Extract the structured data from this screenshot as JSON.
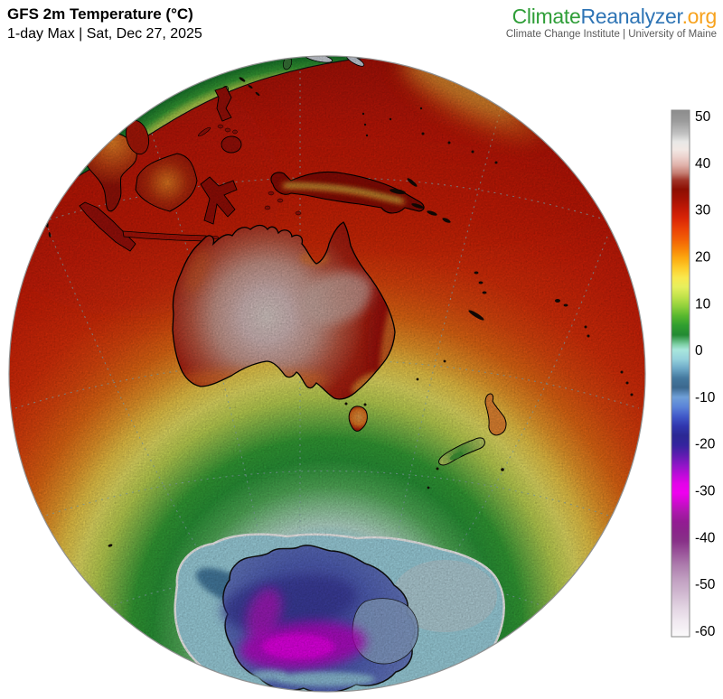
{
  "header": {
    "title": "GFS 2m Temperature (°C)",
    "subtitle": "1-day Max | Sat, Dec 27, 2025"
  },
  "logo": {
    "climate": "Climate",
    "reanalyzer": "Reanalyzer",
    "org": ".org",
    "tagline": "Climate Change Institute | University of Maine",
    "colors": {
      "climate": "#2f9e38",
      "reanalyzer": "#2e74b5",
      "org": "#f7a21d",
      "tagline": "#5a5a5a"
    }
  },
  "colorbar": {
    "unit": "°C",
    "max": 50,
    "min": -60,
    "tick_step": 10,
    "ticks": [
      50,
      40,
      30,
      20,
      10,
      0,
      -10,
      -20,
      -30,
      -40,
      -50,
      -60
    ],
    "stops": [
      [
        0,
        "#8c8c8c"
      ],
      [
        0.02,
        "#9a9a9a"
      ],
      [
        0.045,
        "#c2c2c2"
      ],
      [
        0.06,
        "#e8e8e6"
      ],
      [
        0.075,
        "#f2e8e4"
      ],
      [
        0.09,
        "#ecd0cb"
      ],
      [
        0.105,
        "#dfb0a8"
      ],
      [
        0.12,
        "#c47c70"
      ],
      [
        0.133,
        "#a03428"
      ],
      [
        0.15,
        "#8c0e02"
      ],
      [
        0.168,
        "#a31103"
      ],
      [
        0.186,
        "#c01805"
      ],
      [
        0.205,
        "#d92506"
      ],
      [
        0.225,
        "#ea4106"
      ],
      [
        0.245,
        "#f25f06"
      ],
      [
        0.264,
        "#f88407"
      ],
      [
        0.282,
        "#fcab11"
      ],
      [
        0.3,
        "#fdcd2c"
      ],
      [
        0.318,
        "#f9e84e"
      ],
      [
        0.336,
        "#e6ef5d"
      ],
      [
        0.355,
        "#bfe24a"
      ],
      [
        0.373,
        "#8fd03b"
      ],
      [
        0.391,
        "#57b72e"
      ],
      [
        0.409,
        "#2f9e2f"
      ],
      [
        0.427,
        "#238a33"
      ],
      [
        0.445,
        "#7ed0a6"
      ],
      [
        0.455,
        "#a9e6dc"
      ],
      [
        0.473,
        "#95d2dc"
      ],
      [
        0.491,
        "#6ca8c6"
      ],
      [
        0.509,
        "#44789e"
      ],
      [
        0.527,
        "#3c688e"
      ],
      [
        0.545,
        "#6f9fd8"
      ],
      [
        0.564,
        "#5a82d8"
      ],
      [
        0.582,
        "#4058c8"
      ],
      [
        0.6,
        "#3036ae"
      ],
      [
        0.618,
        "#2b2894"
      ],
      [
        0.636,
        "#34249e"
      ],
      [
        0.655,
        "#5e1cb0"
      ],
      [
        0.673,
        "#8c16c6"
      ],
      [
        0.691,
        "#ba0cd8"
      ],
      [
        0.709,
        "#e203e8"
      ],
      [
        0.727,
        "#ef00ef"
      ],
      [
        0.745,
        "#cf0bcf"
      ],
      [
        0.764,
        "#ab18ab"
      ],
      [
        0.782,
        "#931b93"
      ],
      [
        0.8,
        "#8a258a"
      ],
      [
        0.818,
        "#883088"
      ],
      [
        0.84,
        "#9a549a"
      ],
      [
        0.864,
        "#ad7cad"
      ],
      [
        0.89,
        "#c09ec0"
      ],
      [
        0.915,
        "#cfb6cf"
      ],
      [
        0.945,
        "#e2d4e2"
      ],
      [
        0.97,
        "#f0e8f0"
      ],
      [
        1,
        "#fbfafb"
      ]
    ]
  },
  "map": {
    "ocean_stops": [
      [
        0,
        "#7888cc"
      ],
      [
        0.105,
        "#99d6e6"
      ],
      [
        0.155,
        "#a6dde9"
      ],
      [
        0.185,
        "#bfe6d6"
      ],
      [
        0.215,
        "#93d2a0"
      ],
      [
        0.25,
        "#55b45c"
      ],
      [
        0.295,
        "#2b9b39"
      ],
      [
        0.33,
        "#35a437"
      ],
      [
        0.365,
        "#7fc04a"
      ],
      [
        0.4,
        "#c4dc55"
      ],
      [
        0.435,
        "#eee867"
      ],
      [
        0.47,
        "#f6cf4a"
      ],
      [
        0.505,
        "#f49f2c"
      ],
      [
        0.55,
        "#ee6c14"
      ],
      [
        0.6,
        "#e84a0e"
      ],
      [
        0.66,
        "#e23009"
      ],
      [
        0.75,
        "#d82108"
      ],
      [
        0.86,
        "#c81808"
      ],
      [
        1,
        "#a81007"
      ]
    ],
    "colors": {
      "hot_interior": "#ddd0cc",
      "tropical_ocean": "#d82108",
      "sea_ice": "#a4dcea",
      "antarctic_plateau": "#5565c0",
      "antarctic_extreme": "#ee00ee",
      "coastline": "#000000",
      "globe_edge": "#909090"
    }
  }
}
